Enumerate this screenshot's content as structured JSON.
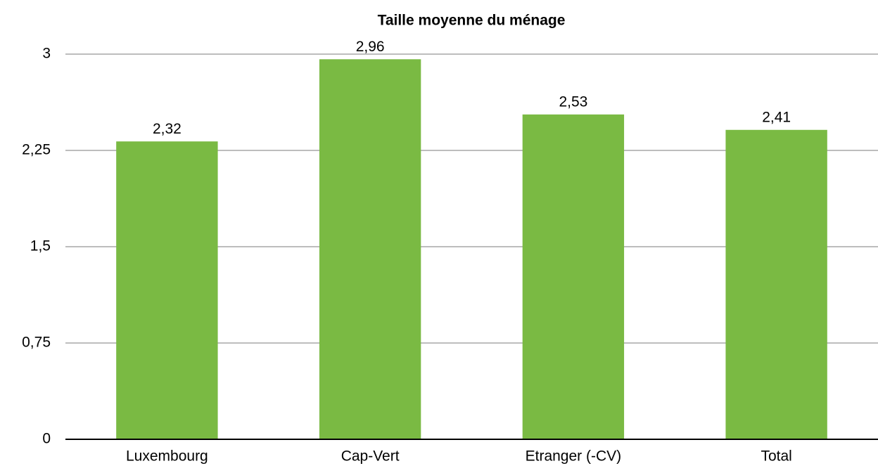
{
  "chart_data": {
    "type": "bar",
    "title": "Taille moyenne du ménage",
    "categories": [
      "Luxembourg",
      "Cap-Vert",
      "Etranger (-CV)",
      "Total"
    ],
    "values": [
      2.32,
      2.96,
      2.53,
      2.41
    ],
    "value_labels": [
      "2,32",
      "2,96",
      "2,53",
      "2,41"
    ],
    "color": "#7aba43",
    "ylim": [
      0,
      3
    ],
    "yticks": [
      0,
      {
        "value": 0.75,
        "label": "0,75"
      },
      {
        "value": 1.5,
        "label": "1,5"
      },
      {
        "value": 2.25,
        "label": "2,25"
      },
      3
    ],
    "grid": true
  }
}
